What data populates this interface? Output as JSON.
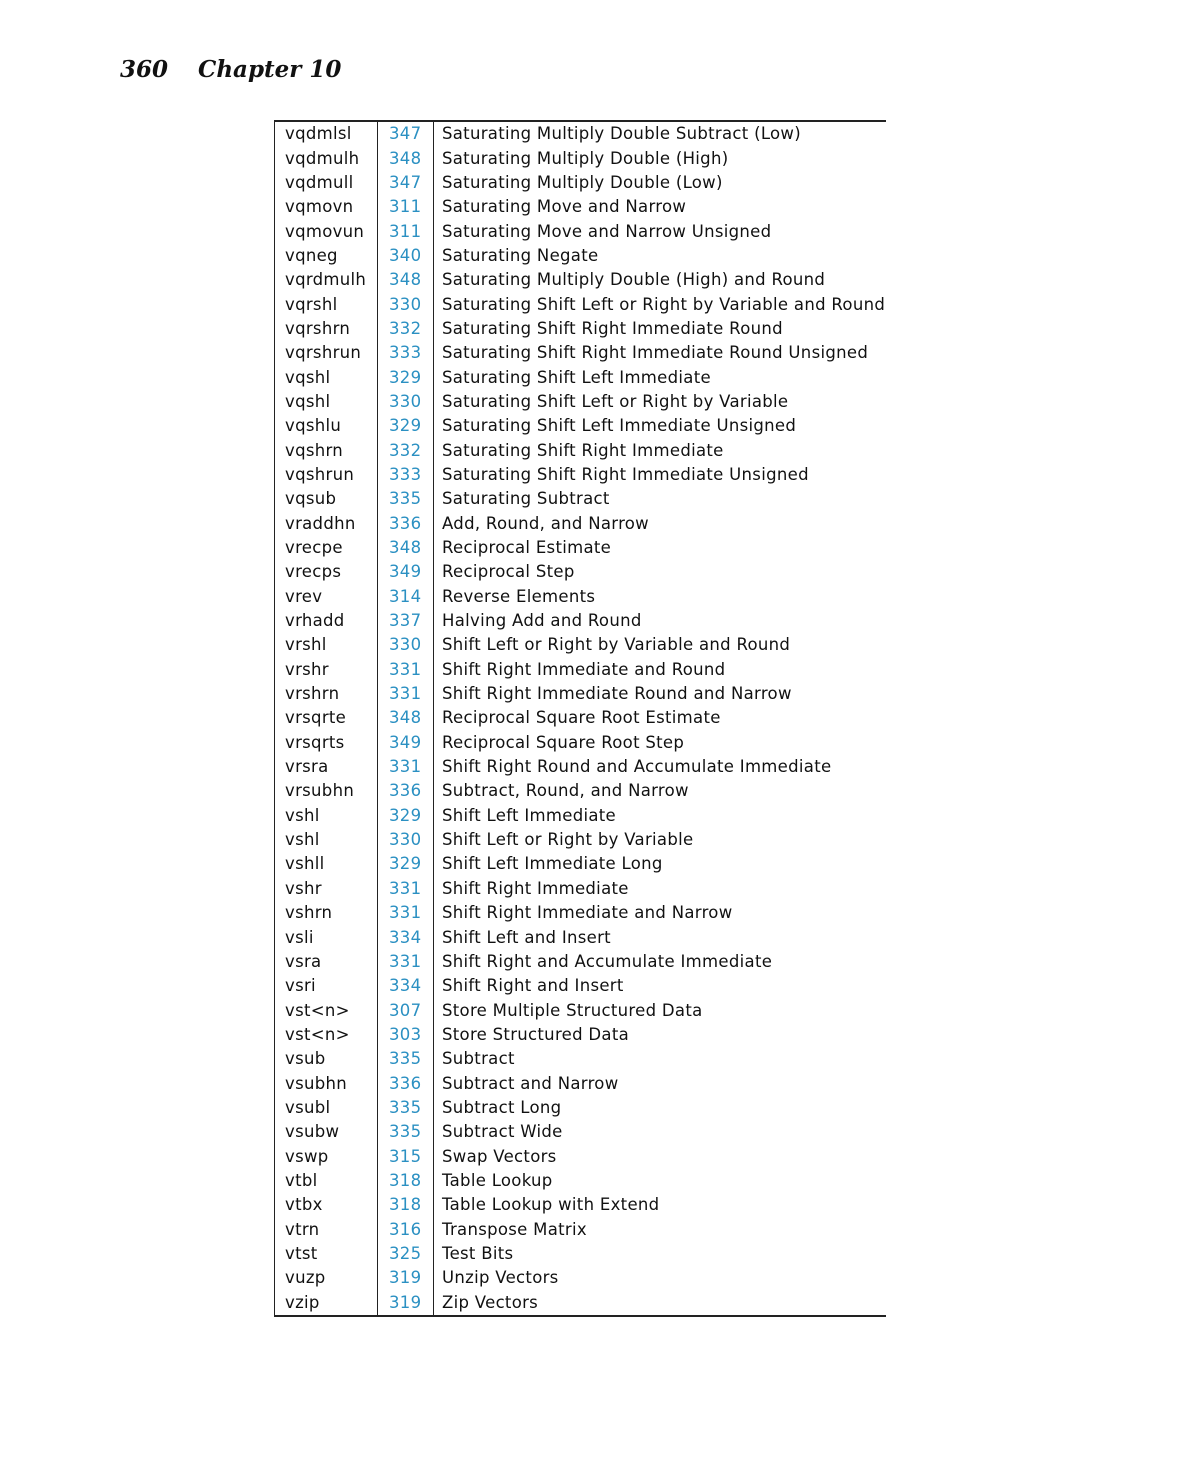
{
  "header": {
    "page_number": "360",
    "chapter": "Chapter 10"
  },
  "link_color": "#2b90c2",
  "rows": [
    [
      "vqdmlsl",
      "347",
      "Saturating Multiply Double Subtract (Low)"
    ],
    [
      "vqdmulh",
      "348",
      "Saturating Multiply Double (High)"
    ],
    [
      "vqdmull",
      "347",
      "Saturating Multiply Double (Low)"
    ],
    [
      "vqmovn",
      "311",
      "Saturating Move and Narrow"
    ],
    [
      "vqmovun",
      "311",
      "Saturating Move and Narrow Unsigned"
    ],
    [
      "vqneg",
      "340",
      "Saturating Negate"
    ],
    [
      "vqrdmulh",
      "348",
      "Saturating Multiply Double (High) and Round"
    ],
    [
      "vqrshl",
      "330",
      "Saturating Shift Left or Right by Variable and Round"
    ],
    [
      "vqrshrn",
      "332",
      "Saturating Shift Right Immediate Round"
    ],
    [
      "vqrshrun",
      "333",
      "Saturating Shift Right Immediate Round Unsigned"
    ],
    [
      "vqshl",
      "329",
      "Saturating Shift Left Immediate"
    ],
    [
      "vqshl",
      "330",
      "Saturating Shift Left or Right by Variable"
    ],
    [
      "vqshlu",
      "329",
      "Saturating Shift Left Immediate Unsigned"
    ],
    [
      "vqshrn",
      "332",
      "Saturating Shift Right Immediate"
    ],
    [
      "vqshrun",
      "333",
      "Saturating Shift Right Immediate Unsigned"
    ],
    [
      "vqsub",
      "335",
      "Saturating Subtract"
    ],
    [
      "vraddhn",
      "336",
      "Add, Round, and Narrow"
    ],
    [
      "vrecpe",
      "348",
      "Reciprocal Estimate"
    ],
    [
      "vrecps",
      "349",
      "Reciprocal Step"
    ],
    [
      "vrev",
      "314",
      "Reverse Elements"
    ],
    [
      "vrhadd",
      "337",
      "Halving Add and Round"
    ],
    [
      "vrshl",
      "330",
      "Shift Left or Right by Variable and Round"
    ],
    [
      "vrshr",
      "331",
      "Shift Right Immediate and Round"
    ],
    [
      "vrshrn",
      "331",
      "Shift Right Immediate Round and Narrow"
    ],
    [
      "vrsqrte",
      "348",
      "Reciprocal Square Root Estimate"
    ],
    [
      "vrsqrts",
      "349",
      "Reciprocal Square Root Step"
    ],
    [
      "vrsra",
      "331",
      "Shift Right Round and Accumulate Immediate"
    ],
    [
      "vrsubhn",
      "336",
      "Subtract, Round, and Narrow"
    ],
    [
      "vshl",
      "329",
      "Shift Left Immediate"
    ],
    [
      "vshl",
      "330",
      "Shift Left or Right by Variable"
    ],
    [
      "vshll",
      "329",
      "Shift Left Immediate Long"
    ],
    [
      "vshr",
      "331",
      "Shift Right Immediate"
    ],
    [
      "vshrn",
      "331",
      "Shift Right Immediate and Narrow"
    ],
    [
      "vsli",
      "334",
      "Shift Left and Insert"
    ],
    [
      "vsra",
      "331",
      "Shift Right and Accumulate Immediate"
    ],
    [
      "vsri",
      "334",
      "Shift Right and Insert"
    ],
    [
      "vst<n>",
      "307",
      "Store Multiple Structured Data"
    ],
    [
      "vst<n>",
      "303",
      "Store Structured Data"
    ],
    [
      "vsub",
      "335",
      "Subtract"
    ],
    [
      "vsubhn",
      "336",
      "Subtract and Narrow"
    ],
    [
      "vsubl",
      "335",
      "Subtract Long"
    ],
    [
      "vsubw",
      "335",
      "Subtract Wide"
    ],
    [
      "vswp",
      "315",
      "Swap Vectors"
    ],
    [
      "vtbl",
      "318",
      "Table Lookup"
    ],
    [
      "vtbx",
      "318",
      "Table Lookup with Extend"
    ],
    [
      "vtrn",
      "316",
      "Transpose Matrix"
    ],
    [
      "vtst",
      "325",
      "Test Bits"
    ],
    [
      "vuzp",
      "319",
      "Unzip Vectors"
    ],
    [
      "vzip",
      "319",
      "Zip Vectors"
    ]
  ]
}
